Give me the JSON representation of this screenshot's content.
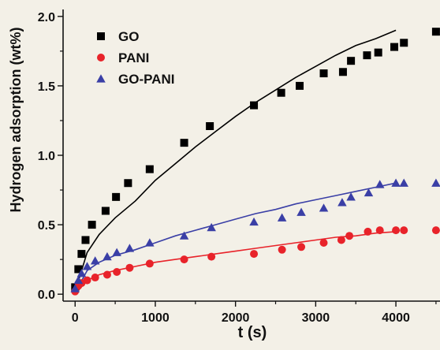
{
  "chart_data": {
    "type": "scatter",
    "title": "",
    "xlabel": "t (s)",
    "ylabel": "Hydrogen adsorption (wt%)",
    "xlim": [
      -150,
      4550
    ],
    "ylim": [
      -0.05,
      2.05
    ],
    "xticks": [
      0,
      1000,
      2000,
      3000,
      4000
    ],
    "xtick_labels": [
      "0",
      "1000",
      "2000",
      "3000",
      "4000"
    ],
    "yticks": [
      0.0,
      0.5,
      1.0,
      1.5,
      2.0
    ],
    "ytick_labels": [
      "0.0",
      "0.5",
      "1.0",
      "1.5",
      "2.0"
    ],
    "grid": false,
    "legend_position": "top-left",
    "series": [
      {
        "name": "GO",
        "marker": "square",
        "color": "#000000",
        "fit_color": "#000000",
        "x": [
          0,
          40,
          80,
          130,
          210,
          380,
          510,
          660,
          930,
          1360,
          1680,
          2230,
          2570,
          2800,
          3100,
          3340,
          3440,
          3640,
          3780,
          3980,
          4100,
          4500
        ],
        "y": [
          0.05,
          0.18,
          0.29,
          0.39,
          0.5,
          0.6,
          0.7,
          0.8,
          0.9,
          1.09,
          1.21,
          1.36,
          1.45,
          1.5,
          1.59,
          1.6,
          1.68,
          1.72,
          1.74,
          1.78,
          1.81,
          1.89
        ],
        "fit_y": [
          0.02,
          0.3,
          0.43,
          0.55,
          0.67,
          0.82,
          0.94,
          1.06,
          1.17,
          1.28,
          1.38,
          1.47,
          1.56,
          1.64,
          1.72,
          1.79,
          1.84,
          1.9
        ]
      },
      {
        "name": "PANI",
        "marker": "circle",
        "color": "#e8232a",
        "fit_color": "#e8232a",
        "x": [
          0,
          40,
          80,
          150,
          250,
          400,
          520,
          680,
          930,
          1360,
          1700,
          2230,
          2580,
          2820,
          3100,
          3320,
          3420,
          3650,
          3800,
          4000,
          4100,
          4500
        ],
        "y": [
          0.02,
          0.06,
          0.08,
          0.1,
          0.12,
          0.14,
          0.16,
          0.19,
          0.22,
          0.25,
          0.27,
          0.29,
          0.32,
          0.34,
          0.37,
          0.39,
          0.42,
          0.45,
          0.46,
          0.46,
          0.46,
          0.46
        ],
        "fit_y": [
          0.0,
          0.1,
          0.14,
          0.17,
          0.2,
          0.23,
          0.25,
          0.27,
          0.29,
          0.31,
          0.33,
          0.35,
          0.37,
          0.39,
          0.41,
          0.42,
          0.44,
          0.45
        ]
      },
      {
        "name": "GO-PANI",
        "marker": "triangle",
        "color": "#3a3fa6",
        "fit_color": "#3a3fa6",
        "x": [
          0,
          40,
          80,
          150,
          250,
          400,
          520,
          680,
          930,
          1360,
          1700,
          2230,
          2580,
          2820,
          3100,
          3330,
          3440,
          3660,
          3800,
          4000,
          4100,
          4500
        ],
        "y": [
          0.04,
          0.1,
          0.15,
          0.2,
          0.24,
          0.27,
          0.3,
          0.33,
          0.37,
          0.42,
          0.48,
          0.52,
          0.55,
          0.59,
          0.62,
          0.66,
          0.7,
          0.73,
          0.79,
          0.8,
          0.8,
          0.8
        ],
        "fit_y": [
          0.01,
          0.17,
          0.23,
          0.28,
          0.32,
          0.37,
          0.42,
          0.46,
          0.5,
          0.54,
          0.58,
          0.61,
          0.65,
          0.68,
          0.71,
          0.74,
          0.77,
          0.8
        ]
      }
    ],
    "fit_x": [
      0,
      150,
      300,
      500,
      750,
      1000,
      1250,
      1500,
      1750,
      2000,
      2250,
      2500,
      2750,
      3000,
      3250,
      3500,
      3750,
      4000
    ]
  }
}
